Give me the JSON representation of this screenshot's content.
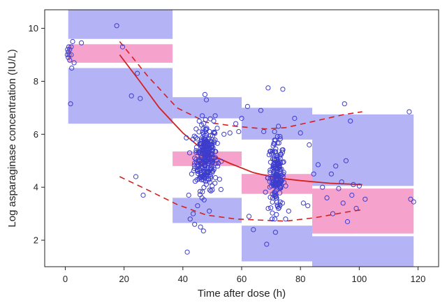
{
  "chart_data": {
    "type": "scatter",
    "xlabel": "Time after dose (h)",
    "ylabel": "Log asparaginase concentration (IU/L)",
    "xlim": [
      -7,
      127
    ],
    "ylim": [
      1,
      10.7
    ],
    "x_ticks": [
      0,
      20,
      40,
      60,
      80,
      100,
      120
    ],
    "y_ticks": [
      2,
      4,
      6,
      8,
      10
    ],
    "grid": false,
    "colors": {
      "points": "#3d3dcc",
      "bands_outer": "#b3b3f5",
      "bands_median": "#f5a3cc",
      "median_line": "#d42020",
      "percentile_lines": "#d42020"
    },
    "ci_bands": [
      {
        "x": [
          1,
          36.5
        ],
        "lower_pi": [
          6.4,
          8.5
        ],
        "median_pi": [
          8.7,
          9.4
        ],
        "upper_pi": [
          9.6,
          10.7
        ]
      },
      {
        "x": [
          36.5,
          60
        ],
        "lower_pi": [
          2.65,
          3.6
        ],
        "median_pi": [
          4.8,
          5.35
        ],
        "upper_pi": [
          6.6,
          7.4
        ]
      },
      {
        "x": [
          60,
          84
        ],
        "lower_pi": [
          1.2,
          2.55
        ],
        "median_pi": [
          3.75,
          4.5
        ],
        "upper_pi": [
          5.8,
          7.0
        ]
      },
      {
        "x": [
          84,
          118.5
        ],
        "lower_pi": [
          1.0,
          2.15
        ],
        "median_pi": [
          2.25,
          3.95
        ],
        "upper_pi": [
          4.05,
          6.75
        ]
      }
    ],
    "median_line": {
      "x": [
        18.5,
        25,
        32,
        40,
        48,
        56,
        64,
        72,
        80,
        90,
        101
      ],
      "y": [
        9.0,
        8.05,
        7.0,
        6.05,
        5.3,
        4.9,
        4.55,
        4.35,
        4.25,
        4.15,
        4.1
      ]
    },
    "upper_percentile_line": {
      "x": [
        18.5,
        28,
        38,
        48,
        58,
        68,
        75,
        85,
        95,
        101
      ],
      "y": [
        9.5,
        8.2,
        7.0,
        6.45,
        6.3,
        6.2,
        6.25,
        6.5,
        6.75,
        6.85
      ]
    },
    "lower_percentile_line": {
      "x": [
        18.5,
        28,
        38,
        48,
        58,
        68,
        75,
        85,
        95,
        101
      ],
      "y": [
        4.4,
        3.9,
        3.35,
        2.95,
        2.8,
        2.75,
        2.72,
        2.85,
        3.05,
        3.15
      ]
    },
    "scatter_points": [
      [
        0.7,
        9.0
      ],
      [
        0.8,
        9.2
      ],
      [
        1.0,
        9.1
      ],
      [
        1.0,
        8.9
      ],
      [
        1.2,
        9.3
      ],
      [
        1.3,
        9.0
      ],
      [
        1.5,
        8.8
      ],
      [
        1.5,
        9.2
      ],
      [
        2.0,
        9.3
      ],
      [
        2.0,
        9.0
      ],
      [
        2.2,
        8.5
      ],
      [
        2.5,
        9.5
      ],
      [
        3.0,
        8.7
      ],
      [
        1.8,
        7.15
      ],
      [
        5.5,
        9.45
      ],
      [
        17.5,
        10.1
      ],
      [
        19.5,
        9.3
      ],
      [
        22.5,
        7.45
      ],
      [
        24.5,
        8.3
      ],
      [
        25.5,
        7.35
      ],
      [
        24.0,
        4.4
      ],
      [
        26.5,
        3.7
      ],
      [
        41.5,
        1.55
      ],
      [
        42.0,
        3.7
      ],
      [
        42.5,
        2.8
      ],
      [
        43.0,
        4.5
      ],
      [
        43.5,
        3.0
      ],
      [
        44.0,
        2.6
      ],
      [
        44.5,
        6.2
      ],
      [
        45.0,
        3.3
      ],
      [
        46.0,
        2.5
      ],
      [
        46.5,
        3.6
      ],
      [
        47.0,
        2.35
      ],
      [
        47.5,
        7.5
      ],
      [
        48.0,
        7.3
      ],
      [
        49.0,
        3.1
      ],
      [
        50.0,
        3.9
      ],
      [
        50.5,
        6.5
      ],
      [
        51.0,
        6.7
      ],
      [
        52.5,
        4.3
      ],
      [
        54.0,
        6.0
      ],
      [
        56.0,
        6.05
      ],
      [
        58.0,
        6.4
      ],
      [
        59.0,
        6.1
      ],
      [
        60.0,
        6.6
      ],
      [
        62.0,
        7.05
      ],
      [
        62.5,
        2.9
      ],
      [
        64.0,
        2.4
      ],
      [
        66.5,
        6.9
      ],
      [
        67.5,
        6.1
      ],
      [
        68.5,
        1.85
      ],
      [
        69.0,
        7.75
      ],
      [
        71.5,
        2.3
      ],
      [
        72.5,
        6.3
      ],
      [
        74.0,
        7.7
      ],
      [
        75.0,
        4.05
      ],
      [
        76.0,
        3.1
      ],
      [
        78.0,
        6.6
      ],
      [
        80.0,
        6.05
      ],
      [
        81.0,
        3.4
      ],
      [
        82.5,
        3.3
      ],
      [
        83.0,
        5.6
      ],
      [
        84.5,
        4.5
      ],
      [
        86.0,
        4.85
      ],
      [
        87.5,
        4.0
      ],
      [
        89.0,
        3.6
      ],
      [
        90.5,
        4.5
      ],
      [
        91.0,
        3.0
      ],
      [
        92.0,
        4.8
      ],
      [
        93.0,
        3.95
      ],
      [
        94.0,
        4.2
      ],
      [
        94.5,
        3.4
      ],
      [
        95.0,
        7.15
      ],
      [
        95.5,
        5.0
      ],
      [
        96.0,
        2.7
      ],
      [
        97.0,
        6.5
      ],
      [
        97.5,
        3.7
      ],
      [
        98.0,
        4.1
      ],
      [
        99.0,
        3.2
      ],
      [
        100.0,
        4.05
      ],
      [
        102.0,
        3.55
      ],
      [
        117.0,
        6.85
      ],
      [
        117.5,
        3.55
      ],
      [
        118.5,
        3.45
      ]
    ]
  }
}
